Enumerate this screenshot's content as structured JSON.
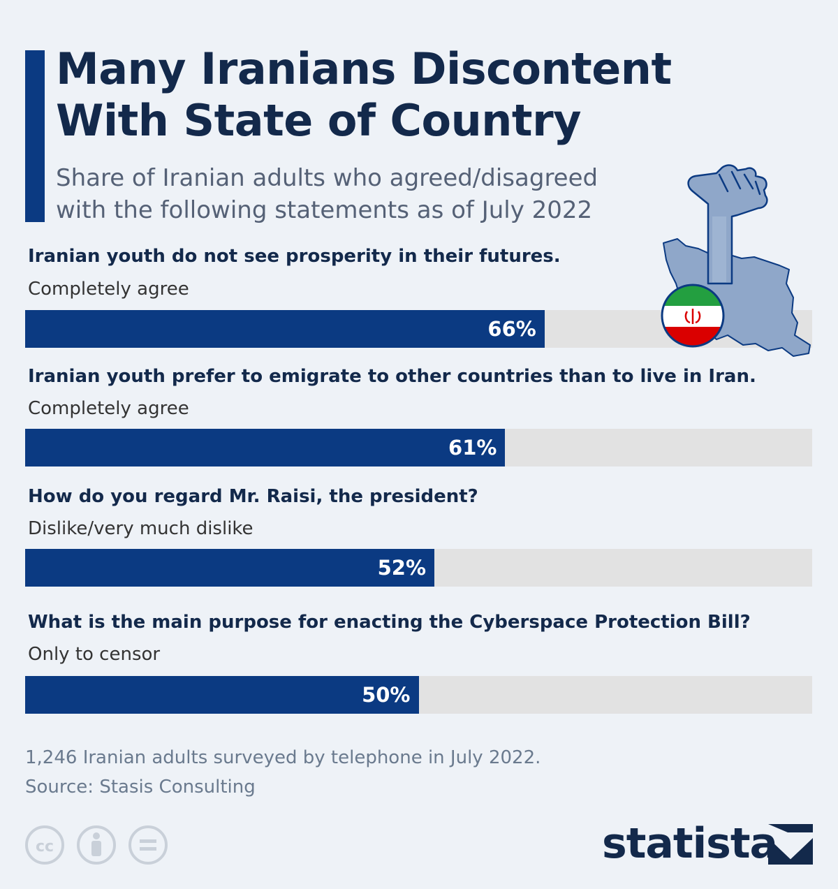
{
  "header": {
    "title_line1": "Many Iranians Discontent",
    "title_line2": "With State of Country",
    "subtitle_line1": "Share of Iranian adults who agreed/disagreed",
    "subtitle_line2": "with the following statements as of July 2022"
  },
  "chart_data": {
    "type": "bar",
    "orientation": "horizontal",
    "xlim": [
      0,
      100
    ],
    "unit": "%",
    "items": [
      {
        "question": "Iranian youth do not see prosperity in their futures.",
        "answer": "Completely agree",
        "value": 66,
        "label": "66%"
      },
      {
        "question": "Iranian youth prefer to emigrate to other countries than to live in Iran.",
        "answer": "Completely agree",
        "value": 61,
        "label": "61%"
      },
      {
        "question": "How do you regard Mr. Raisi, the president?",
        "answer": "Dislike/very much dislike",
        "value": 52,
        "label": "52%"
      },
      {
        "question": "What is the main purpose for enacting the Cyberspace Protection Bill?",
        "answer": "Only to censor",
        "value": 50,
        "label": "50%"
      }
    ],
    "colors": {
      "bar": "#0b3a82",
      "track": "#e2e2e2"
    }
  },
  "illustration": {
    "icons": [
      "raised-fist-icon",
      "iran-map-icon",
      "iran-flag-icon"
    ],
    "colors": {
      "map": "#8fa7c9",
      "outline": "#0b3a82",
      "flag_green": "#239f40",
      "flag_red": "#da0000"
    }
  },
  "footer": {
    "note": "1,246 Iranian adults surveyed by telephone in July 2022.",
    "source": "Source: Stasis Consulting",
    "license_icons": [
      "cc-icon",
      "attribution-icon",
      "no-derivatives-icon"
    ],
    "brand": "statista"
  }
}
